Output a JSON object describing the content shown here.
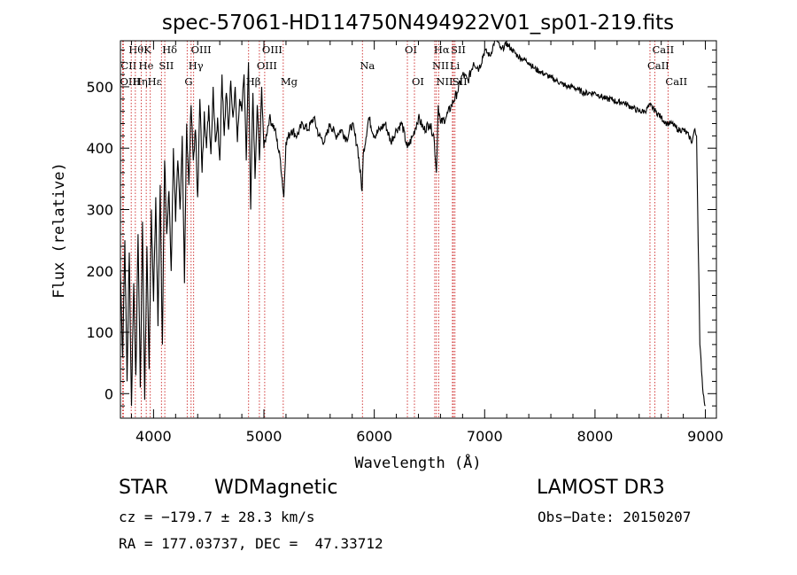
{
  "chart_data": {
    "type": "line",
    "title": "spec-57061-HD114750N494922V01_sp01-219.fits",
    "xlabel": "Wavelength (Å)",
    "ylabel": "Flux (relative)",
    "xlim": [
      3700,
      9100
    ],
    "ylim": [
      -40,
      575
    ],
    "xticks": [
      4000,
      5000,
      6000,
      7000,
      8000,
      9000
    ],
    "yticks": [
      0,
      100,
      200,
      300,
      400,
      500
    ],
    "series": [
      {
        "name": "flux",
        "x": [
          3700,
          3720,
          3740,
          3760,
          3780,
          3800,
          3820,
          3840,
          3860,
          3880,
          3900,
          3920,
          3940,
          3960,
          3980,
          4000,
          4020,
          4040,
          4060,
          4080,
          4100,
          4120,
          4140,
          4160,
          4180,
          4200,
          4220,
          4240,
          4260,
          4280,
          4300,
          4320,
          4340,
          4360,
          4380,
          4400,
          4420,
          4440,
          4460,
          4480,
          4500,
          4520,
          4540,
          4560,
          4580,
          4600,
          4620,
          4640,
          4660,
          4680,
          4700,
          4720,
          4740,
          4760,
          4780,
          4800,
          4820,
          4840,
          4860,
          4880,
          4900,
          4920,
          4940,
          4960,
          4980,
          5000,
          5050,
          5100,
          5150,
          5180,
          5200,
          5250,
          5300,
          5350,
          5400,
          5450,
          5500,
          5550,
          5600,
          5650,
          5700,
          5750,
          5800,
          5850,
          5890,
          5900,
          5950,
          6000,
          6050,
          6100,
          6150,
          6200,
          6250,
          6300,
          6350,
          6400,
          6450,
          6500,
          6540,
          6563,
          6580,
          6600,
          6650,
          6700,
          6750,
          6800,
          6850,
          6900,
          6950,
          7000,
          7050,
          7100,
          7150,
          7200,
          7250,
          7300,
          7350,
          7400,
          7450,
          7500,
          7550,
          7600,
          7650,
          7700,
          7750,
          7800,
          7850,
          7900,
          7950,
          8000,
          8050,
          8100,
          8150,
          8200,
          8250,
          8300,
          8350,
          8400,
          8450,
          8500,
          8550,
          8600,
          8650,
          8700,
          8750,
          8800,
          8850,
          8880,
          8900,
          8920,
          8950,
          8980,
          9000
        ],
        "values": [
          200,
          60,
          250,
          20,
          230,
          -20,
          180,
          30,
          260,
          10,
          280,
          -10,
          240,
          40,
          300,
          150,
          320,
          110,
          340,
          80,
          380,
          260,
          330,
          200,
          400,
          280,
          380,
          300,
          420,
          180,
          440,
          340,
          470,
          380,
          430,
          320,
          480,
          360,
          460,
          400,
          470,
          390,
          500,
          410,
          450,
          380,
          520,
          420,
          490,
          430,
          510,
          450,
          500,
          410,
          480,
          460,
          520,
          380,
          540,
          300,
          490,
          350,
          470,
          380,
          500,
          400,
          450,
          430,
          380,
          320,
          410,
          430,
          420,
          440,
          430,
          450,
          420,
          410,
          440,
          420,
          430,
          415,
          440,
          400,
          330,
          390,
          450,
          420,
          430,
          440,
          410,
          430,
          440,
          400,
          420,
          450,
          430,
          440,
          420,
          360,
          470,
          440,
          450,
          470,
          490,
          520,
          510,
          540,
          530,
          560,
          550,
          580,
          560,
          570,
          560,
          550,
          545,
          540,
          530,
          525,
          520,
          515,
          510,
          505,
          500,
          500,
          495,
          490,
          490,
          490,
          485,
          480,
          480,
          475,
          475,
          470,
          465,
          460,
          460,
          470,
          460,
          450,
          440,
          440,
          430,
          430,
          420,
          410,
          430,
          420,
          80,
          0,
          -20
        ]
      }
    ],
    "line_markers": [
      {
        "label": "Hθ",
        "x": 3798,
        "row": 0
      },
      {
        "label": "K",
        "x": 3934,
        "row": 0
      },
      {
        "label": "Hδ",
        "x": 4102,
        "row": 0
      },
      {
        "label": "OIII",
        "x": 4363,
        "row": 0
      },
      {
        "label": "OIII",
        "x": 5007,
        "row": 0
      },
      {
        "label": "OI",
        "x": 6300,
        "row": 0
      },
      {
        "label": "Hα",
        "x": 6563,
        "row": 0
      },
      {
        "label": "SII",
        "x": 6717,
        "row": 0
      },
      {
        "label": "CaII",
        "x": 8542,
        "row": 0
      },
      {
        "label": "CII",
        "x": 3727,
        "row": 1
      },
      {
        "label": "He",
        "x": 3889,
        "row": 1
      },
      {
        "label": "SII",
        "x": 4072,
        "row": 1
      },
      {
        "label": "Hγ",
        "x": 4340,
        "row": 1
      },
      {
        "label": "OIII",
        "x": 4959,
        "row": 1
      },
      {
        "label": "Na",
        "x": 5893,
        "row": 1
      },
      {
        "label": "NII",
        "x": 6548,
        "row": 1
      },
      {
        "label": "Li",
        "x": 6708,
        "row": 1
      },
      {
        "label": "CaII",
        "x": 8498,
        "row": 1
      },
      {
        "label": "OIII",
        "x": 3720,
        "row": 2
      },
      {
        "label": "Hη",
        "x": 3835,
        "row": 2
      },
      {
        "label": "Hε",
        "x": 3970,
        "row": 2
      },
      {
        "label": "G",
        "x": 4305,
        "row": 2
      },
      {
        "label": "Hβ",
        "x": 4861,
        "row": 2
      },
      {
        "label": "Mg",
        "x": 5175,
        "row": 2
      },
      {
        "label": "OI",
        "x": 6364,
        "row": 2
      },
      {
        "label": "NII",
        "x": 6584,
        "row": 2
      },
      {
        "label": "SII",
        "x": 6731,
        "row": 2
      },
      {
        "label": "CaII",
        "x": 8662,
        "row": 2
      }
    ]
  },
  "info": {
    "object_class": "STAR",
    "subclass": "WDMagnetic",
    "survey": "LAMOST DR3",
    "cz": "cz = −179.7 ± 28.3 km/s",
    "obs_date": "Obs−Date: 20150207",
    "coords": "RA = 177.03737, DEC =  47.33712"
  }
}
